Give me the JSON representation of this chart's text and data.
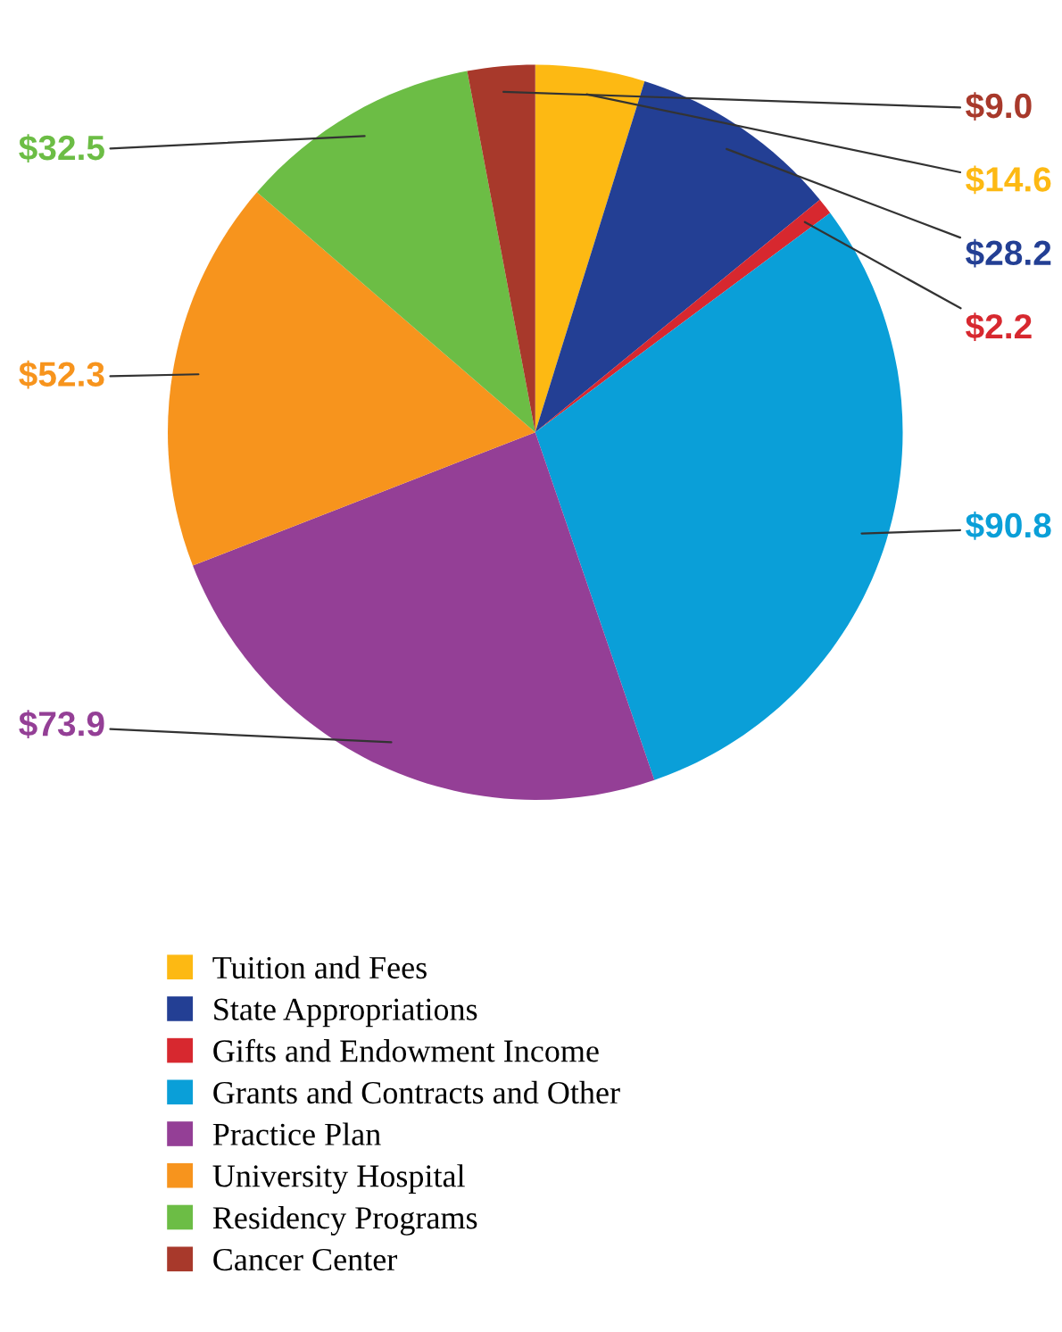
{
  "chart_data": {
    "type": "pie",
    "categories": [
      "Tuition and Fees",
      "State Appropriations",
      "Gifts and Endowment Income",
      "Grants and Contracts and Other",
      "Practice Plan",
      "University Hospital",
      "Residency Programs",
      "Cancer Center"
    ],
    "values": [
      14.6,
      28.2,
      2.2,
      90.8,
      73.9,
      52.3,
      32.5,
      9.0
    ],
    "colors": [
      "#fdb913",
      "#233f94",
      "#d7282f",
      "#0a9fd8",
      "#943f96",
      "#f7941d",
      "#6cbd45",
      "#a8392b"
    ],
    "value_labels": [
      "$14.6",
      "$28.2",
      "$2.2",
      "$90.8",
      "$73.9",
      "$52.3",
      "$32.5",
      "$9.0"
    ],
    "legend": "bottom"
  }
}
